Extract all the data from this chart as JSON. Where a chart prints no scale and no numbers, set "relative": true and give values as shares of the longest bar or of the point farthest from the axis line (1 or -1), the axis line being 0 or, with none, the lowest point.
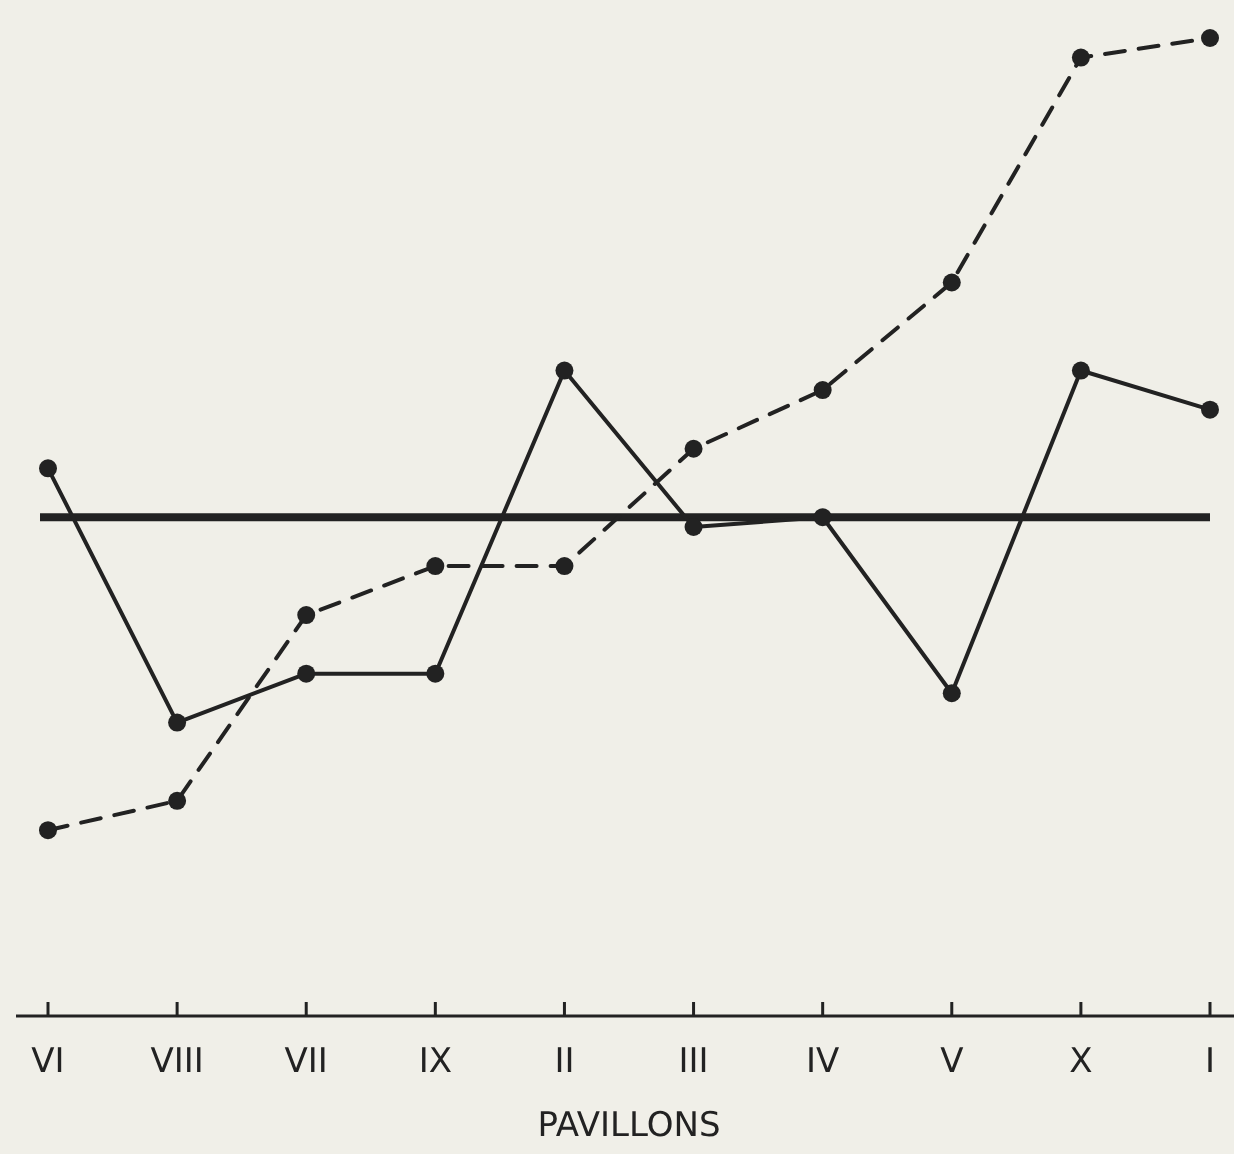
{
  "chart_data": {
    "type": "line",
    "xlabel": "PAVILLONS",
    "relative": true,
    "marker": "circle",
    "categories": [
      "VI",
      "VIII",
      "VII",
      "IX",
      "II",
      "III",
      "IV",
      "V",
      "X",
      "I"
    ],
    "series": [
      {
        "color": "#222222",
        "line_style": "solid",
        "values": [
          0.56,
          0.3,
          0.35,
          0.35,
          0.66,
          0.5,
          0.51,
          0.33,
          0.66,
          0.62
        ]
      },
      {
        "color": "#222222",
        "line_style": "dashed",
        "values": [
          0.19,
          0.22,
          0.41,
          0.46,
          0.46,
          0.58,
          0.64,
          0.75,
          0.98,
          1
        ]
      }
    ],
    "ref_lines": [
      {
        "axis": "y",
        "value": 0.51,
        "color": "#222222",
        "line_style": "solid"
      }
    ]
  }
}
